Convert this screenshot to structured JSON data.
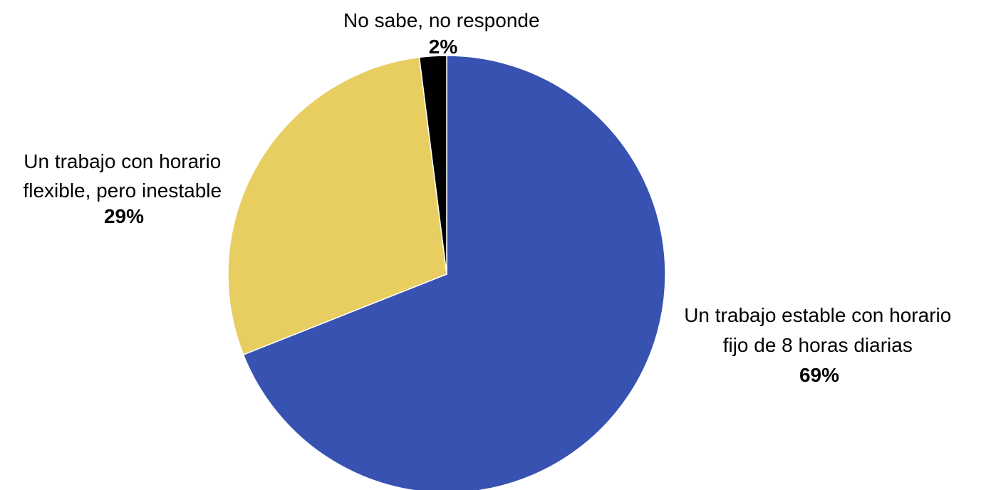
{
  "chart_data": {
    "type": "pie",
    "start_angle": "top, clockwise",
    "slices": [
      {
        "label_lines": [
          "Un trabajo estable con horario",
          "fijo de 8 horas diarias"
        ],
        "value": 69,
        "value_label": "69%",
        "color": "#3752b0"
      },
      {
        "label_lines": [
          "Un trabajo con horario",
          "flexible, pero inestable"
        ],
        "value": 29,
        "value_label": "29%",
        "color": "#e8cd60"
      },
      {
        "label_lines": [
          "No sabe, no responde"
        ],
        "value": 2,
        "value_label": "2%",
        "color": "#000000"
      }
    ],
    "legend": "none (labels placed next to slices)"
  }
}
